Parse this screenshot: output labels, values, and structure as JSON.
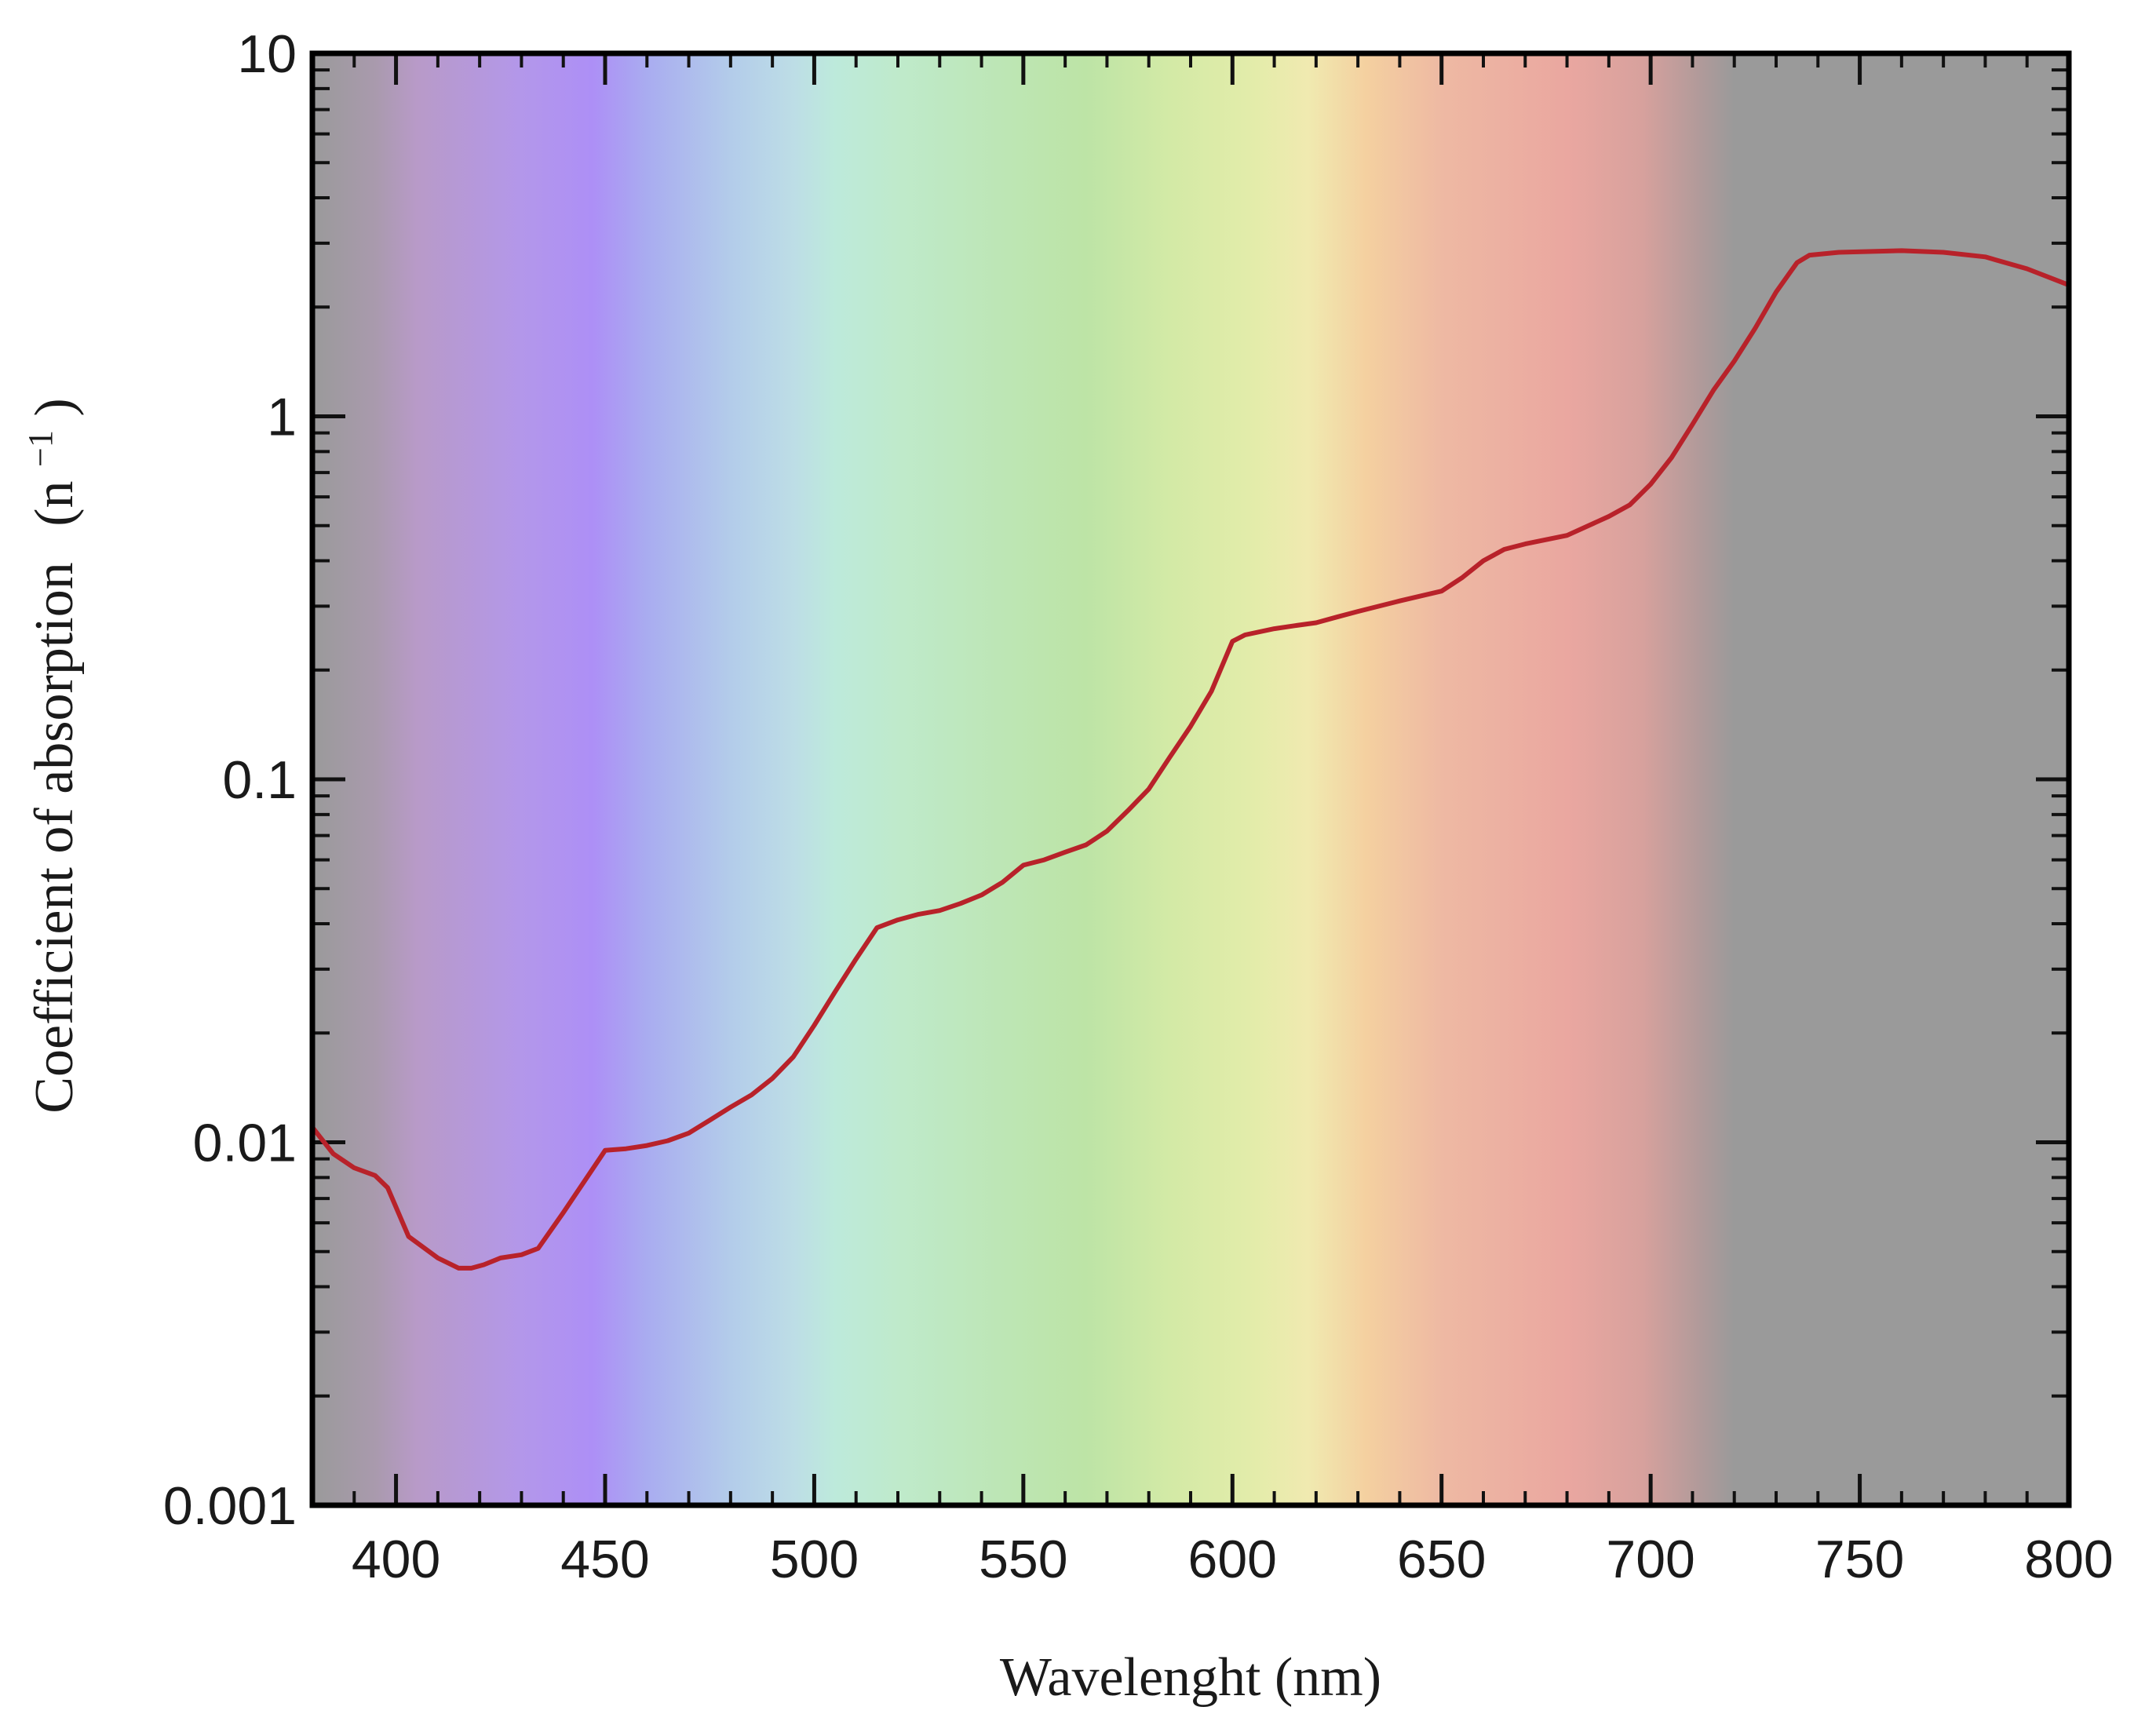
{
  "chart_data": {
    "type": "line",
    "title": "",
    "xlabel": "Wavelenght (nm)",
    "ylabel": "Coefficient of absorption",
    "ylabel_unit": "(n",
    "ylabel_unit_exponent": "−1",
    "ylabel_unit_close": ")",
    "xlim": [
      380,
      800
    ],
    "ylim": [
      0.001,
      10
    ],
    "yscale": "log",
    "grid": false,
    "legend": "none",
    "x_ticks": [
      400,
      450,
      500,
      550,
      600,
      650,
      700,
      750,
      800
    ],
    "x_tick_labels": [
      "400",
      "450",
      "500",
      "550",
      "600",
      "650",
      "700",
      "750",
      "800"
    ],
    "y_ticks": [
      0.001,
      0.01,
      0.1,
      1,
      10
    ],
    "y_tick_labels": [
      "0.001",
      "0.01",
      "0.1",
      "1",
      "10"
    ],
    "line_color": "#b8222a",
    "background": "visible color spectrum (violet to red) over gray",
    "spectrum_stops": [
      {
        "nm": 380,
        "color": "#9a9a9a"
      },
      {
        "nm": 395,
        "color": "#a99aad"
      },
      {
        "nm": 405,
        "color": "#b89ac8"
      },
      {
        "nm": 430,
        "color": "#b397ea"
      },
      {
        "nm": 447,
        "color": "#ad8ff6"
      },
      {
        "nm": 460,
        "color": "#a9acf0"
      },
      {
        "nm": 480,
        "color": "#b3ccea"
      },
      {
        "nm": 495,
        "color": "#bddde6"
      },
      {
        "nm": 505,
        "color": "#bdeadb"
      },
      {
        "nm": 520,
        "color": "#bfeacb"
      },
      {
        "nm": 545,
        "color": "#bde6b5"
      },
      {
        "nm": 565,
        "color": "#bde4a6"
      },
      {
        "nm": 585,
        "color": "#d3eaa6"
      },
      {
        "nm": 605,
        "color": "#e3ecaa"
      },
      {
        "nm": 618,
        "color": "#f0eab0"
      },
      {
        "nm": 632,
        "color": "#f4d0a0"
      },
      {
        "nm": 650,
        "color": "#eeb9a3"
      },
      {
        "nm": 680,
        "color": "#eaa7a0"
      },
      {
        "nm": 698,
        "color": "#d7a19d"
      },
      {
        "nm": 712,
        "color": "#b09a9a"
      },
      {
        "nm": 720,
        "color": "#9a9a9a"
      },
      {
        "nm": 800,
        "color": "#9a9a9a"
      }
    ],
    "series": [
      {
        "x": [
          380,
          385,
          390,
          395,
          398,
          403,
          410,
          415,
          418,
          421,
          425,
          430,
          434,
          440,
          445,
          450,
          455,
          460,
          465,
          470,
          475,
          480,
          485,
          490,
          495,
          500,
          505,
          510,
          515,
          520,
          525,
          530,
          535,
          540,
          545,
          550,
          555,
          560,
          565,
          570,
          575,
          580,
          585,
          590,
          595,
          600,
          603,
          610,
          615,
          620,
          625,
          630,
          640,
          650,
          655,
          660,
          665,
          670,
          680,
          690,
          695,
          700,
          705,
          710,
          715,
          720,
          725,
          730,
          735,
          738,
          745,
          760,
          770,
          780,
          790,
          800
        ],
        "y": [
          0.011,
          0.0093,
          0.0085,
          0.0081,
          0.0075,
          0.0055,
          0.0048,
          0.0045,
          0.0045,
          0.0046,
          0.0048,
          0.0049,
          0.0051,
          0.0064,
          0.0078,
          0.0095,
          0.0096,
          0.0098,
          0.0101,
          0.0106,
          0.0115,
          0.0125,
          0.0135,
          0.015,
          0.0172,
          0.021,
          0.026,
          0.032,
          0.039,
          0.041,
          0.0425,
          0.0435,
          0.0455,
          0.048,
          0.052,
          0.058,
          0.06,
          0.063,
          0.066,
          0.072,
          0.082,
          0.094,
          0.115,
          0.14,
          0.175,
          0.24,
          0.25,
          0.26,
          0.265,
          0.27,
          0.28,
          0.29,
          0.31,
          0.33,
          0.36,
          0.4,
          0.43,
          0.445,
          0.47,
          0.53,
          0.57,
          0.65,
          0.77,
          0.95,
          1.18,
          1.42,
          1.75,
          2.2,
          2.65,
          2.78,
          2.83,
          2.86,
          2.83,
          2.75,
          2.55,
          2.3
        ]
      }
    ]
  }
}
